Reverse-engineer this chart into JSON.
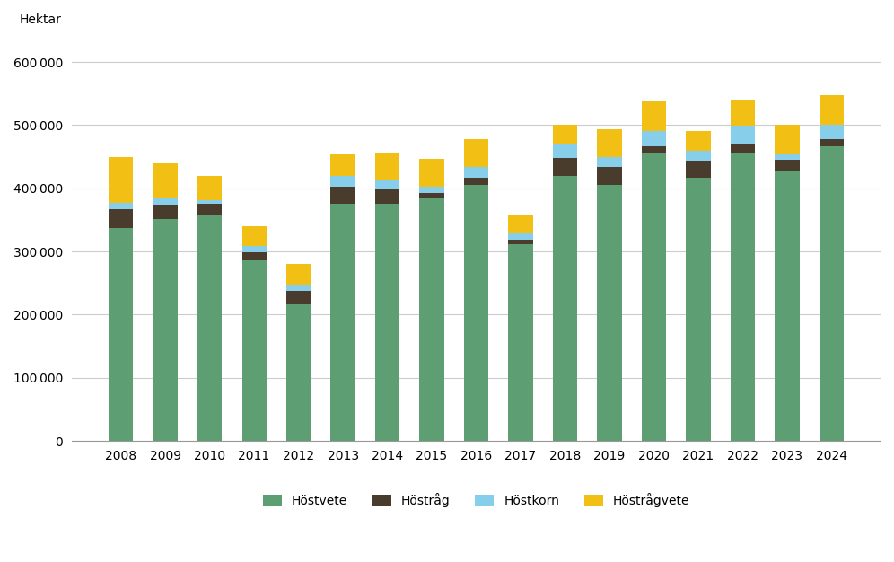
{
  "years": [
    "2008",
    "2009",
    "2010",
    "2011",
    "2012",
    "2013",
    "2014",
    "2015",
    "2016",
    "2017",
    "2018",
    "2019",
    "2020",
    "2021",
    "2022",
    "2023",
    "2024"
  ],
  "hostvete": [
    337000,
    352000,
    357000,
    286000,
    216000,
    376000,
    376000,
    386000,
    406000,
    311000,
    420000,
    406000,
    457000,
    416000,
    457000,
    427000,
    467000
  ],
  "hostrag": [
    30000,
    22000,
    18000,
    13000,
    22000,
    26000,
    22000,
    7000,
    10000,
    8000,
    28000,
    28000,
    10000,
    28000,
    14000,
    18000,
    11000
  ],
  "hostkorn": [
    10000,
    10000,
    6000,
    10000,
    9000,
    18000,
    16000,
    10000,
    18000,
    10000,
    22000,
    15000,
    23000,
    16000,
    28000,
    10000,
    23000
  ],
  "hostraagvete": [
    73000,
    56000,
    39000,
    31000,
    33000,
    35000,
    42000,
    43000,
    44000,
    28000,
    30000,
    45000,
    47000,
    30000,
    42000,
    45000,
    47000
  ],
  "hostvete_color": "#5d9e72",
  "hostrag_color": "#4a3c2c",
  "hostkorn_color": "#87ceeb",
  "hostraagvete_color": "#f2c015",
  "ylabel": "Hektar",
  "ylim": [
    0,
    650000
  ],
  "yticks": [
    0,
    100000,
    200000,
    300000,
    400000,
    500000,
    600000
  ],
  "legend_labels": [
    "Höstvete",
    "Höstråg",
    "Höstkorn",
    "Höstrågvete"
  ],
  "bg_color": "#ffffff",
  "grid_color": "#cccccc"
}
